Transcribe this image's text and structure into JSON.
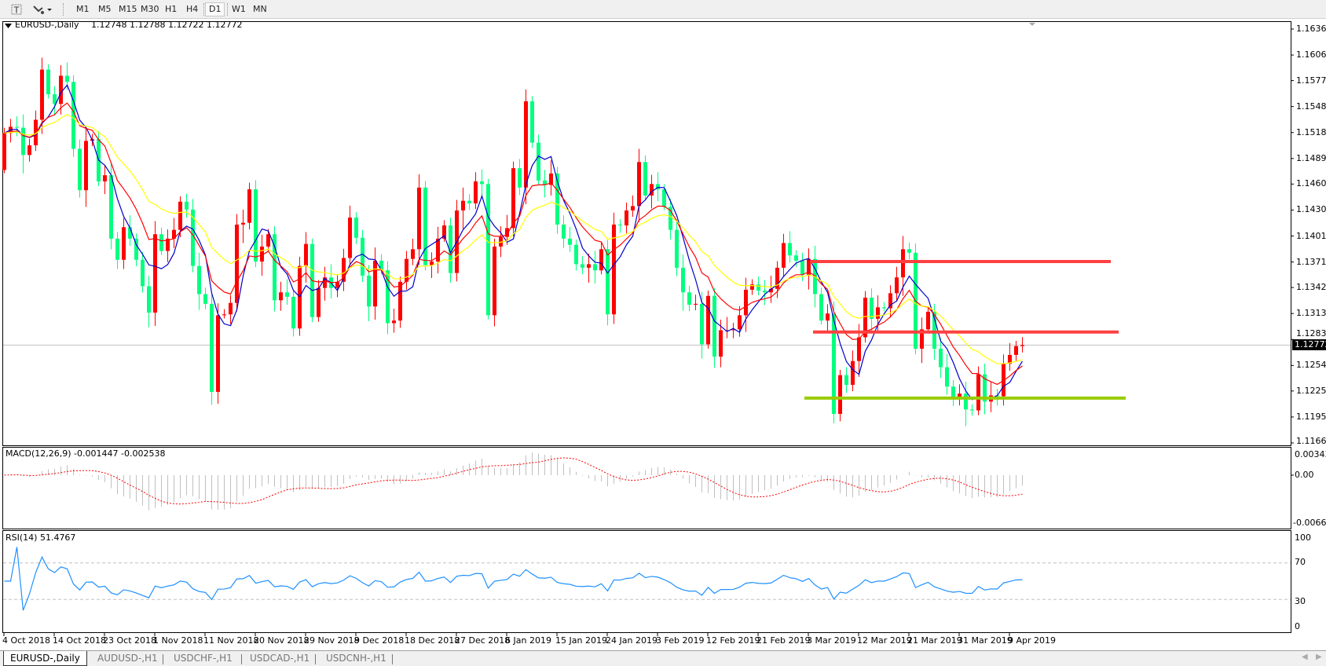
{
  "toolbar": {
    "icons": [
      "text-tool-icon",
      "line-tools-icon"
    ],
    "timeframes": [
      "M1",
      "M5",
      "M15",
      "M30",
      "H1",
      "H4",
      "D1",
      "W1",
      "MN"
    ],
    "active_timeframe": "D1"
  },
  "chart": {
    "title": "EURUSD-,Daily",
    "ohlc_text": "1.12748 1.12788 1.12722 1.12772",
    "current_price": "1.12772",
    "macd_label": "MACD(12,26,9) -0.001447 -0.002538",
    "rsi_label": "RSI(14) 51.4767",
    "macd_axis": [
      "0.003431",
      "0.00",
      "-0.006686"
    ],
    "rsi_axis": [
      "100",
      "70",
      "30",
      "0"
    ],
    "colors": {
      "bull": "#ff0000",
      "bear": "#00ff7f",
      "ma_fast": "#0000cc",
      "ma_mid": "#ff0000",
      "ma_slow": "#ffff00",
      "macd_hist": "#c0c0c0",
      "macd_signal": "#ff0000",
      "rsi": "#1e90ff",
      "resistance": "#ff4040",
      "support": "#99cc00"
    }
  },
  "chart_data": {
    "type": "candlestick",
    "ylim": [
      1.1166,
      1.1636
    ],
    "price_ticks": [
      "1.16360",
      "1.16065",
      "1.15775",
      "1.15480",
      "1.15185",
      "1.14890",
      "1.14600",
      "1.14305",
      "1.14010",
      "1.13715",
      "1.13425",
      "1.13130",
      "1.12835",
      "1.12540",
      "1.12250",
      "1.11955",
      "1.11660"
    ],
    "date_labels": [
      "4 Oct 2018",
      "14 Oct 2018",
      "23 Oct 2018",
      "1 Nov 2018",
      "11 Nov 2018",
      "20 Nov 2018",
      "29 Nov 2018",
      "9 Dec 2018",
      "18 Dec 2018",
      "27 Dec 2018",
      "6 Jan 2019",
      "15 Jan 2019",
      "24 Jan 2019",
      "3 Feb 2019",
      "12 Feb 2019",
      "21 Feb 2019",
      "3 Mar 2019",
      "12 Mar 2019",
      "21 Mar 2019",
      "31 Mar 2019",
      "9 Apr 2019"
    ],
    "first_open": 1.1476,
    "closes": [
      1.1518,
      1.1525,
      1.1524,
      1.1493,
      1.1504,
      1.1533,
      1.159,
      1.1562,
      1.1551,
      1.1583,
      1.1576,
      1.15,
      1.1453,
      1.1509,
      1.1511,
      1.1463,
      1.147,
      1.1398,
      1.1374,
      1.1411,
      1.1398,
      1.1374,
      1.1344,
      1.1314,
      1.1403,
      1.1384,
      1.1398,
      1.1408,
      1.144,
      1.1431,
      1.1367,
      1.1335,
      1.1324,
      1.1224,
      1.1311,
      1.1312,
      1.1325,
      1.1414,
      1.1416,
      1.1454,
      1.1372,
      1.1389,
      1.1403,
      1.1328,
      1.1337,
      1.1332,
      1.1296,
      1.1367,
      1.1392,
      1.1309,
      1.1342,
      1.1354,
      1.1342,
      1.1349,
      1.1376,
      1.1422,
      1.1399,
      1.1356,
      1.1321,
      1.1373,
      1.1362,
      1.1302,
      1.1305,
      1.1349,
      1.1375,
      1.1386,
      1.1456,
      1.1368,
      1.1372,
      1.1398,
      1.1413,
      1.1359,
      1.143,
      1.1441,
      1.1438,
      1.1463,
      1.146,
      1.1311,
      1.1389,
      1.14,
      1.141,
      1.1478,
      1.1456,
      1.1554,
      1.1507,
      1.1464,
      1.1459,
      1.1472,
      1.1414,
      1.1398,
      1.1391,
      1.1369,
      1.1365,
      1.1369,
      1.1362,
      1.1386,
      1.1312,
      1.1414,
      1.1413,
      1.143,
      1.1435,
      1.1485,
      1.1447,
      1.146,
      1.1454,
      1.1434,
      1.1408,
      1.1365,
      1.1337,
      1.1323,
      1.1324,
      1.1278,
      1.1333,
      1.1264,
      1.1294,
      1.1294,
      1.1295,
      1.1311,
      1.134,
      1.1346,
      1.1339,
      1.1337,
      1.1341,
      1.1365,
      1.1393,
      1.1379,
      1.1373,
      1.1357,
      1.1375,
      1.1335,
      1.1305,
      1.1313,
      1.1199,
      1.1243,
      1.1232,
      1.1259,
      1.1286,
      1.1331,
      1.1307,
      1.132,
      1.1319,
      1.1336,
      1.1354,
      1.1386,
      1.1382,
      1.1273,
      1.1295,
      1.1315,
      1.1273,
      1.1252,
      1.123,
      1.1217,
      1.1222,
      1.1204,
      1.1203,
      1.1244,
      1.1213,
      1.122,
      1.1219,
      1.1256,
      1.1266,
      1.1276,
      1.12772
    ],
    "levels": [
      {
        "name": "resistance-upper",
        "price": 1.1372,
        "color": "#ff4040"
      },
      {
        "name": "resistance-lower",
        "price": 1.1292,
        "color": "#ff4040"
      },
      {
        "name": "support",
        "price": 1.1217,
        "color": "#99cc00"
      }
    ]
  },
  "tabs": [
    {
      "label": "EURUSD-,Daily",
      "active": true
    },
    {
      "label": "AUDUSD-,H1",
      "active": false
    },
    {
      "label": "USDCHF-,H1",
      "active": false
    },
    {
      "label": "USDCAD-,H1",
      "active": false
    },
    {
      "label": "USDCNH-,H1",
      "active": false
    }
  ]
}
